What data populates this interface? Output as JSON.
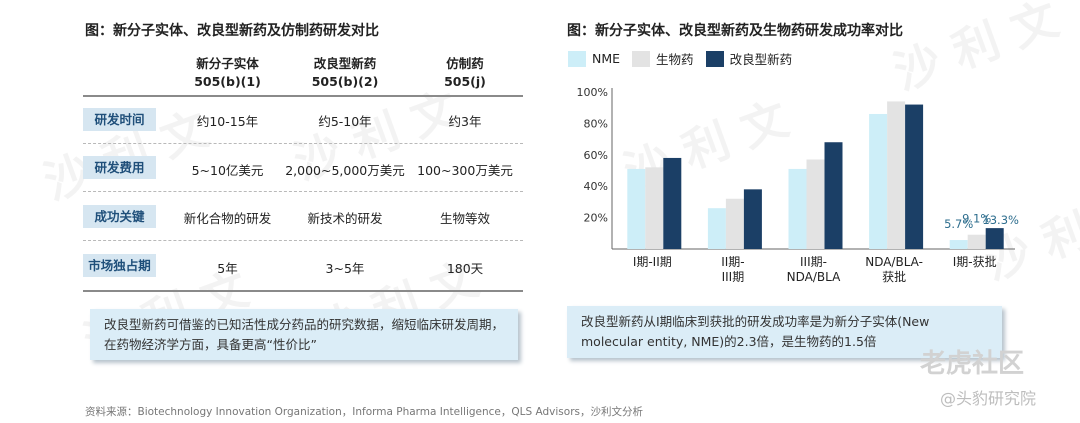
{
  "left_panel": {
    "title": "图：新分子实体、改良型新药及仿制药研发对比",
    "columns": [
      {
        "line1": "新分子实体",
        "line2": "505(b)(1)"
      },
      {
        "line1": "改良型新药",
        "line2": "505(b)(2)"
      },
      {
        "line1": "仿制药",
        "line2": "505(j)"
      }
    ],
    "rows": [
      {
        "label": "研发时间",
        "values": [
          "约10-15年",
          "约5-10年",
          "约3年"
        ]
      },
      {
        "label": "研发费用",
        "values": [
          "5~10亿美元",
          "2,000~5,000万美元",
          "100~300万美元"
        ]
      },
      {
        "label": "成功关键",
        "values": [
          "新化合物的研发",
          "新技术的研发",
          "生物等效"
        ]
      },
      {
        "label": "市场独占期",
        "values": [
          "5年",
          "3~5年",
          "180天"
        ]
      }
    ],
    "note": "改良型新药可借鉴的已知活性成分药品的研究数据，缩短临床研发周期，在药物经济学方面，具备更高“性价比”"
  },
  "right_panel": {
    "title": "图：新分子实体、改良型新药及生物药研发成功率对比",
    "note_line1": "改良型新药从I期临床到获批的研发成功率是为新分子实体(New",
    "note_line2": "molecular entity, NME)的2.3倍，是生物药的1.5倍"
  },
  "chart_data": {
    "type": "bar",
    "categories": [
      "I期-II期",
      "II期-III期",
      "III期-NDA/BLA",
      "NDA/BLA-获批",
      "I期-获批"
    ],
    "series": [
      {
        "name": "NME",
        "color": "#cdeef8",
        "values": [
          51,
          26,
          51,
          86,
          5.7
        ]
      },
      {
        "name": "生物药",
        "color": "#e3e3e3",
        "values": [
          52,
          32,
          57,
          94,
          9.1
        ]
      },
      {
        "name": "改良型新药",
        "color": "#1b3f66",
        "values": [
          58,
          38,
          68,
          92,
          13.3
        ]
      }
    ],
    "ylim": [
      0,
      100
    ],
    "yticks": [
      "0%",
      "20%",
      "40%",
      "60%",
      "80%",
      "100%"
    ],
    "data_labels": {
      "category_index": 4,
      "labels": [
        "5.7%",
        "9.1%",
        "13.3%"
      ]
    }
  },
  "source": "资料来源：Biotechnology Innovation Organization，Informa Pharma Intelligence，QLS Advisors，沙利文分析",
  "watermark": "沙 利 文",
  "brand": {
    "name": "老虎社区",
    "account": "@头豹研究院"
  }
}
